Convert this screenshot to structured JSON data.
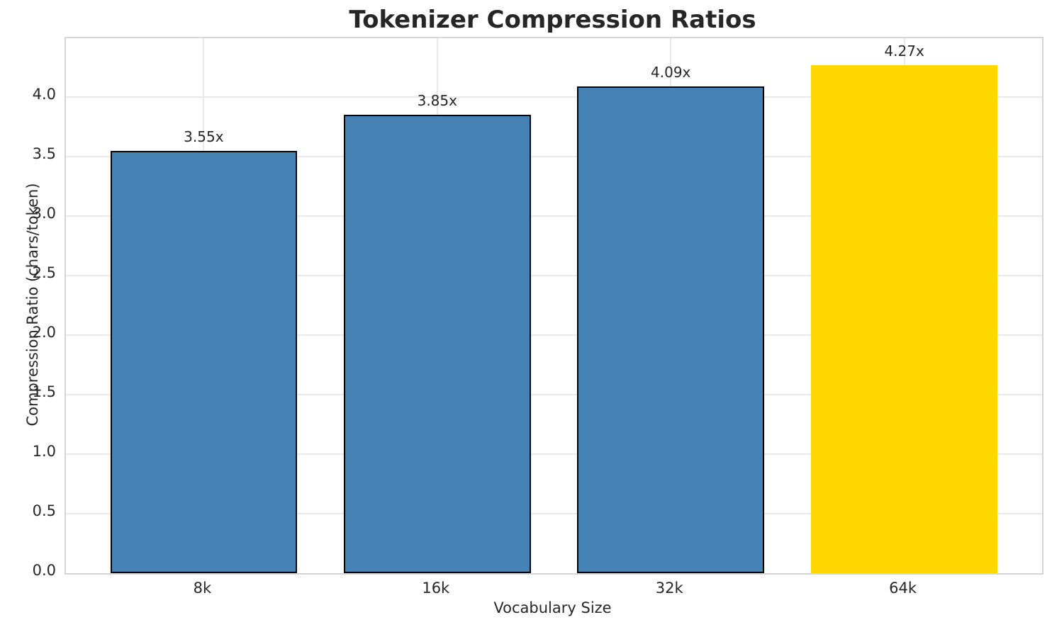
{
  "chart_data": {
    "type": "bar",
    "title": "Tokenizer Compression Ratios",
    "xlabel": "Vocabulary Size",
    "ylabel": "Compression Ratio (chars/token)",
    "categories": [
      "8k",
      "16k",
      "32k",
      "64k"
    ],
    "values": [
      3.55,
      3.85,
      4.09,
      4.27
    ],
    "bar_labels": [
      "3.55x",
      "3.85x",
      "4.09x",
      "4.27x"
    ],
    "yticks": [
      "0.0",
      "0.5",
      "1.0",
      "1.5",
      "2.0",
      "2.5",
      "3.0",
      "3.5",
      "4.0"
    ],
    "ylim": [
      0,
      4.494
    ],
    "grid": "on",
    "legend": "none",
    "colors": {
      "bar": "#4682B4",
      "highlight_bar": "#FFD700",
      "bar_edge": "#000000",
      "grid_line": "#e9e9e9",
      "spine": "#d5d5d5",
      "text": "#262626"
    },
    "highlight_index": 3,
    "highlight_category": "64k"
  }
}
